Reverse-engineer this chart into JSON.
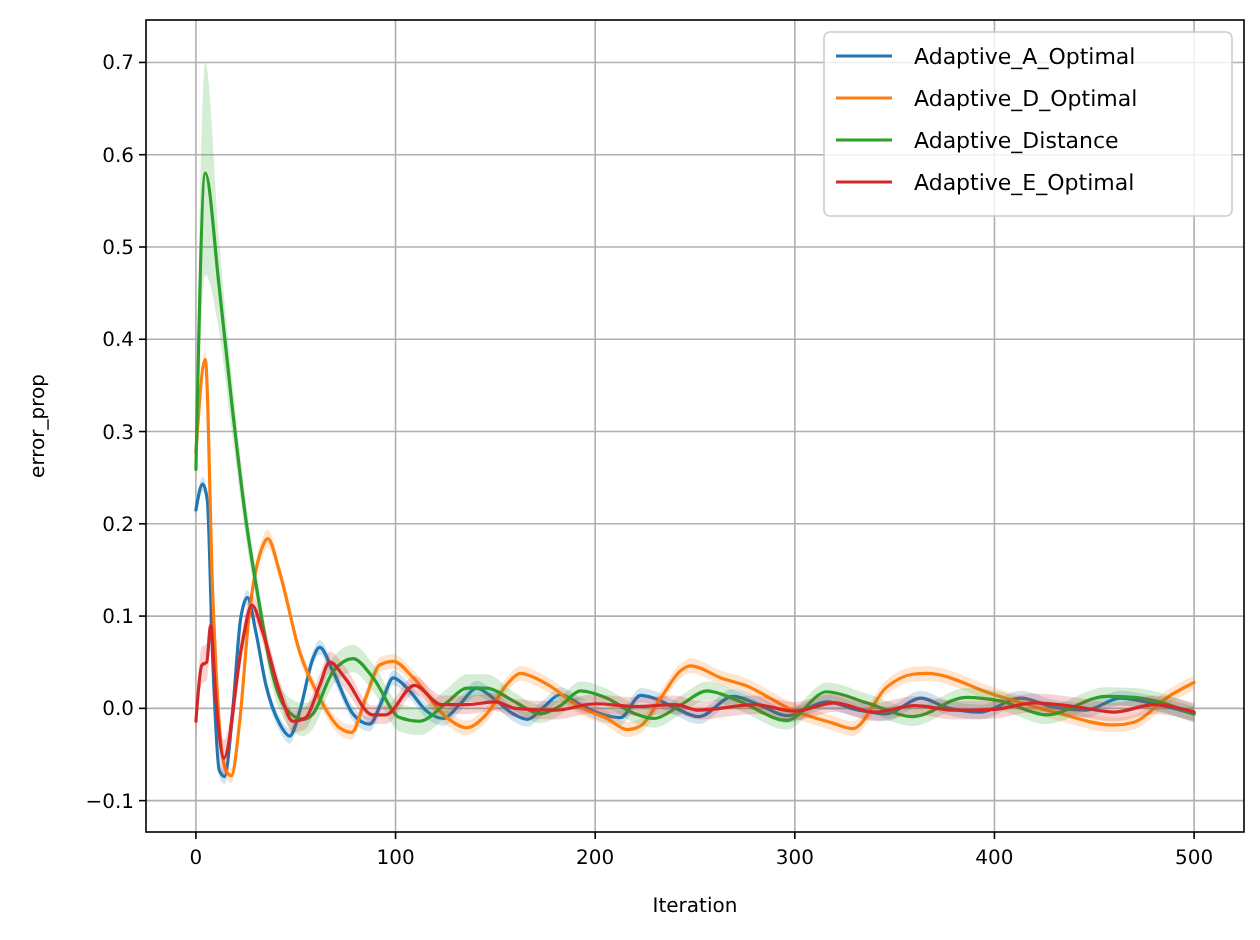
{
  "chart_data": {
    "type": "line",
    "xlabel": "Iteration",
    "ylabel": "error_prop",
    "xlim": [
      -25,
      525
    ],
    "ylim": [
      -0.134,
      0.746
    ],
    "xticks": [
      0,
      100,
      200,
      300,
      400,
      500
    ],
    "yticks": [
      {
        "value": -0.1,
        "label": "−0.1"
      },
      {
        "value": 0,
        "label": "0.0"
      },
      {
        "value": 0.1,
        "label": "0.1"
      },
      {
        "value": 0.2,
        "label": "0.2"
      },
      {
        "value": 0.3,
        "label": "0.3"
      },
      {
        "value": 0.4,
        "label": "0.4"
      },
      {
        "value": 0.5,
        "label": "0.5"
      },
      {
        "value": 0.6,
        "label": "0.6"
      },
      {
        "value": 0.7,
        "label": "0.7"
      }
    ],
    "grid": true,
    "legend": "top right",
    "series": [
      {
        "name": "Adaptive_A_Optimal",
        "color": "#1f77b4",
        "x": [
          0,
          3.4,
          5.7,
          8.4,
          11.7,
          14.4,
          18.4,
          22.4,
          25.8,
          30,
          35,
          42,
          47,
          52,
          58.6,
          62,
          68.7,
          78.7,
          87,
          93.8,
          98.8,
          107,
          115.6,
          124,
          132,
          140.7,
          149,
          159,
          166,
          174,
          182.6,
          192.6,
          202.7,
          212.7,
          222.8,
          229.5,
          239.5,
          252,
          269,
          282,
          296,
          316,
          332,
          346,
          363,
          376,
          393,
          413,
          430,
          446,
          463,
          480,
          500
        ],
        "values": [
          0.215,
          0.243,
          0.226,
          0.054,
          -0.067,
          -0.074,
          -0.003,
          0.097,
          0.12,
          0.083,
          0.026,
          -0.017,
          -0.03,
          -0.003,
          0.054,
          0.066,
          0.04,
          -0.006,
          -0.017,
          0.011,
          0.033,
          0.019,
          -0.003,
          -0.011,
          0.004,
          0.022,
          0.011,
          -0.006,
          -0.012,
          0.001,
          0.015,
          0.004,
          -0.006,
          -0.01,
          0.014,
          0.011,
          0.001,
          -0.009,
          0.013,
          0.004,
          -0.008,
          0.007,
          -0.002,
          -0.006,
          0.011,
          0.001,
          -0.004,
          0.011,
          0.001,
          -0.002,
          0.011,
          0.005,
          -0.006
        ],
        "lower": [
          0.207,
          0.235,
          0.218,
          0.046,
          -0.075,
          -0.082,
          -0.011,
          0.089,
          0.112,
          0.075,
          0.018,
          -0.025,
          -0.038,
          -0.011,
          0.046,
          0.058,
          0.032,
          -0.014,
          -0.025,
          0.003,
          0.025,
          0.011,
          -0.011,
          -0.019,
          -0.004,
          0.014,
          0.003,
          -0.014,
          -0.02,
          -0.007,
          0.007,
          -0.004,
          -0.014,
          -0.018,
          0.006,
          0.003,
          -0.007,
          -0.017,
          0.005,
          -0.004,
          -0.016,
          -0.001,
          -0.01,
          -0.014,
          0.003,
          -0.007,
          -0.012,
          0.003,
          -0.007,
          -0.01,
          0.003,
          -0.003,
          -0.014
        ],
        "upper": [
          0.223,
          0.251,
          0.234,
          0.062,
          -0.059,
          -0.066,
          0.005,
          0.105,
          0.128,
          0.091,
          0.034,
          -0.009,
          -0.022,
          0.005,
          0.062,
          0.074,
          0.048,
          0.002,
          -0.009,
          0.019,
          0.041,
          0.027,
          0.005,
          -0.003,
          0.012,
          0.03,
          0.019,
          0.002,
          -0.004,
          0.009,
          0.023,
          0.012,
          0.002,
          -0.002,
          0.022,
          0.019,
          0.009,
          -0.001,
          0.021,
          0.012,
          0.0,
          0.015,
          0.006,
          0.002,
          0.019,
          0.009,
          0.004,
          0.019,
          0.009,
          0.006,
          0.019,
          0.013,
          0.002
        ]
      },
      {
        "name": "Adaptive_D_Optimal",
        "color": "#ff7f0e",
        "x": [
          0,
          4.7,
          8.4,
          11.7,
          15,
          17.8,
          21.8,
          26.8,
          33.5,
          36,
          42,
          52,
          62,
          72,
          78,
          85,
          92,
          98.8,
          109,
          125.6,
          135.7,
          145.7,
          155.8,
          162.5,
          176,
          192.6,
          206,
          216,
          222.8,
          232.8,
          242.9,
          248,
          263,
          275,
          299,
          319,
          329,
          346,
          359,
          366,
          399.5,
          430,
          460,
          470,
          486.6,
          500
        ],
        "values": [
          0.277,
          0.378,
          0.126,
          -0.017,
          -0.067,
          -0.073,
          -0.017,
          0.104,
          0.176,
          0.184,
          0.147,
          0.061,
          0.011,
          -0.021,
          -0.026,
          0.011,
          0.047,
          0.051,
          0.033,
          -0.01,
          -0.021,
          -0.006,
          0.026,
          0.038,
          0.026,
          0.001,
          -0.011,
          -0.023,
          -0.019,
          0.011,
          0.041,
          0.046,
          0.033,
          0.025,
          -0.002,
          -0.016,
          -0.022,
          0.023,
          0.037,
          0.038,
          0.015,
          -0.004,
          -0.018,
          -0.015,
          0.012,
          0.028
        ],
        "lower": [
          0.269,
          0.368,
          0.118,
          -0.025,
          -0.075,
          -0.081,
          -0.025,
          0.096,
          0.166,
          0.174,
          0.139,
          0.053,
          0.003,
          -0.029,
          -0.034,
          0.003,
          0.039,
          0.043,
          0.025,
          -0.018,
          -0.029,
          -0.014,
          0.018,
          0.03,
          0.018,
          -0.007,
          -0.019,
          -0.031,
          -0.027,
          0.003,
          0.033,
          0.038,
          0.025,
          0.017,
          -0.01,
          -0.024,
          -0.03,
          0.015,
          0.029,
          0.03,
          0.007,
          -0.012,
          -0.026,
          -0.023,
          0.004,
          0.02
        ],
        "upper": [
          0.285,
          0.388,
          0.134,
          -0.009,
          -0.059,
          -0.065,
          -0.009,
          0.112,
          0.186,
          0.194,
          0.155,
          0.069,
          0.019,
          -0.013,
          -0.018,
          0.019,
          0.055,
          0.059,
          0.041,
          -0.002,
          -0.013,
          0.002,
          0.034,
          0.046,
          0.034,
          0.009,
          -0.003,
          -0.015,
          -0.011,
          0.019,
          0.049,
          0.054,
          0.041,
          0.033,
          0.006,
          -0.008,
          -0.014,
          0.031,
          0.045,
          0.046,
          0.023,
          0.004,
          -0.01,
          -0.007,
          0.02,
          0.036
        ]
      },
      {
        "name": "Adaptive_Distance",
        "color": "#2ca02c",
        "x": [
          0,
          4.7,
          11.5,
          18,
          25,
          32,
          38,
          45,
          53.6,
          58.6,
          68.7,
          78.7,
          88.8,
          102,
          112,
          125.6,
          135.7,
          145.7,
          159,
          172.5,
          182.6,
          192.6,
          206,
          219,
          229.5,
          243,
          256,
          272,
          296,
          316,
          336,
          359,
          386,
          403,
          426,
          456,
          470,
          500
        ],
        "values": [
          0.259,
          0.58,
          0.46,
          0.33,
          0.205,
          0.11,
          0.04,
          0.0,
          -0.012,
          -0.006,
          0.04,
          0.054,
          0.033,
          -0.01,
          -0.014,
          0.006,
          0.022,
          0.022,
          0.008,
          -0.006,
          0.003,
          0.019,
          0.011,
          -0.005,
          -0.011,
          0.004,
          0.019,
          0.008,
          -0.013,
          0.018,
          0.006,
          -0.009,
          0.012,
          0.008,
          -0.007,
          0.013,
          0.012,
          -0.006
        ],
        "lower": [
          0.249,
          0.47,
          0.41,
          0.3,
          0.185,
          0.095,
          0.025,
          -0.015,
          -0.03,
          -0.022,
          0.025,
          0.039,
          0.018,
          -0.025,
          -0.029,
          -0.009,
          0.007,
          0.007,
          -0.002,
          -0.016,
          -0.007,
          0.009,
          0.001,
          -0.015,
          -0.021,
          -0.006,
          0.009,
          -0.002,
          -0.023,
          0.008,
          -0.004,
          -0.019,
          0.002,
          -0.002,
          -0.017,
          0.003,
          0.002,
          -0.016
        ],
        "upper": [
          0.269,
          0.7,
          0.51,
          0.36,
          0.225,
          0.125,
          0.055,
          0.015,
          0.006,
          0.01,
          0.055,
          0.069,
          0.048,
          0.005,
          0.001,
          0.021,
          0.037,
          0.037,
          0.018,
          0.004,
          0.013,
          0.029,
          0.021,
          0.005,
          -0.001,
          0.014,
          0.029,
          0.018,
          -0.003,
          0.028,
          0.016,
          0.001,
          0.022,
          0.018,
          0.003,
          0.023,
          0.022,
          0.004
        ]
      },
      {
        "name": "Adaptive_E_Optimal",
        "color": "#d62728",
        "x": [
          0,
          3,
          5.4,
          7.4,
          10,
          14,
          23,
          28,
          33.4,
          42,
          48.6,
          55,
          62,
          67,
          75,
          88.5,
          95,
          109.5,
          123,
          136,
          150,
          160,
          180,
          200,
          220,
          240,
          252,
          280,
          300,
          320,
          340,
          360,
          380,
          400,
          420,
          440,
          460,
          480,
          500
        ],
        "values": [
          -0.014,
          0.047,
          0.05,
          0.09,
          0.011,
          -0.054,
          0.068,
          0.112,
          0.083,
          0.018,
          -0.014,
          -0.01,
          0.025,
          0.05,
          0.032,
          -0.007,
          -0.007,
          0.025,
          0.004,
          0.004,
          0.007,
          0.0,
          -0.002,
          0.005,
          0.002,
          0.004,
          -0.002,
          0.004,
          -0.003,
          0.006,
          -0.004,
          0.003,
          -0.002,
          -0.001,
          0.006,
          0.002,
          -0.004,
          0.004,
          -0.004
        ],
        "lower": [
          -0.034,
          0.027,
          0.03,
          0.07,
          -0.009,
          -0.074,
          0.053,
          0.1,
          0.071,
          0.006,
          -0.026,
          -0.022,
          0.013,
          0.038,
          0.02,
          -0.017,
          -0.017,
          0.015,
          -0.006,
          -0.006,
          -0.003,
          -0.01,
          -0.012,
          -0.005,
          -0.008,
          -0.006,
          -0.012,
          -0.006,
          -0.013,
          -0.004,
          -0.014,
          -0.007,
          -0.012,
          -0.011,
          -0.004,
          -0.008,
          -0.014,
          -0.006,
          -0.014
        ],
        "upper": [
          0.006,
          0.067,
          0.07,
          0.11,
          0.031,
          -0.034,
          0.083,
          0.124,
          0.095,
          0.03,
          -0.002,
          0.002,
          0.037,
          0.062,
          0.044,
          0.003,
          0.003,
          0.035,
          0.014,
          0.014,
          0.017,
          0.01,
          0.008,
          0.015,
          0.012,
          0.014,
          0.008,
          0.014,
          0.007,
          0.016,
          0.006,
          0.013,
          0.008,
          0.009,
          0.016,
          0.012,
          0.006,
          0.014,
          0.006
        ]
      }
    ]
  }
}
